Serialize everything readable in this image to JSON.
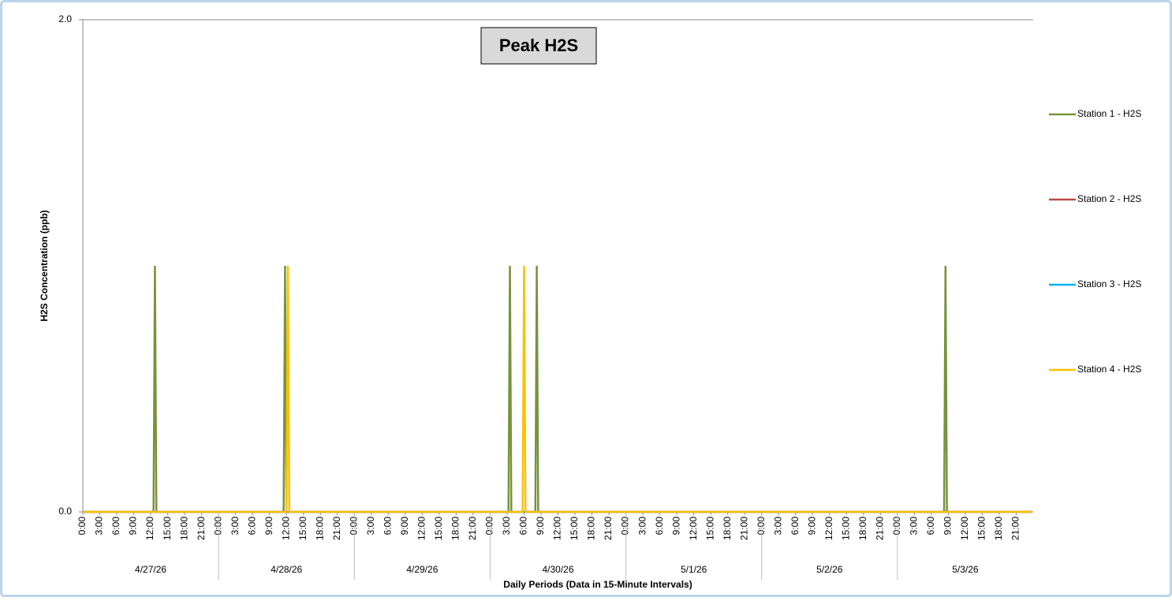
{
  "chart_data": {
    "type": "line",
    "title": "Peak H2S",
    "x_label": "Daily Periods (Data in 15-Minute Intervals)",
    "y_label": "H2S Concentration (ppb)",
    "xlim": [
      0,
      168
    ],
    "ylim": [
      0,
      2
    ],
    "yticks": [
      {
        "value": 0,
        "label": "0.0"
      },
      {
        "value": 2,
        "label": "2.0"
      }
    ],
    "xticks": [
      {
        "value": 0,
        "label": "0:00"
      },
      {
        "value": 3,
        "label": "3:00"
      },
      {
        "value": 6,
        "label": "6:00"
      },
      {
        "value": 9,
        "label": "9:00"
      },
      {
        "value": 12,
        "label": "12:00"
      },
      {
        "value": 15,
        "label": "15:00"
      },
      {
        "value": 18,
        "label": "18:00"
      },
      {
        "value": 21,
        "label": "21:00"
      },
      {
        "value": 24,
        "label": "0:00"
      },
      {
        "value": 27,
        "label": "3:00"
      },
      {
        "value": 30,
        "label": "6:00"
      },
      {
        "value": 33,
        "label": "9:00"
      },
      {
        "value": 36,
        "label": "12:00"
      },
      {
        "value": 39,
        "label": "15:00"
      },
      {
        "value": 42,
        "label": "18:00"
      },
      {
        "value": 45,
        "label": "21:00"
      },
      {
        "value": 48,
        "label": "0:00"
      },
      {
        "value": 51,
        "label": "3:00"
      },
      {
        "value": 54,
        "label": "6:00"
      },
      {
        "value": 57,
        "label": "9:00"
      },
      {
        "value": 60,
        "label": "12:00"
      },
      {
        "value": 63,
        "label": "15:00"
      },
      {
        "value": 66,
        "label": "18:00"
      },
      {
        "value": 69,
        "label": "21:00"
      },
      {
        "value": 72,
        "label": "0:00"
      },
      {
        "value": 75,
        "label": "3:00"
      },
      {
        "value": 78,
        "label": "6:00"
      },
      {
        "value": 81,
        "label": "9:00"
      },
      {
        "value": 84,
        "label": "12:00"
      },
      {
        "value": 87,
        "label": "15:00"
      },
      {
        "value": 90,
        "label": "18:00"
      },
      {
        "value": 93,
        "label": "21:00"
      },
      {
        "value": 96,
        "label": "0:00"
      },
      {
        "value": 99,
        "label": "3:00"
      },
      {
        "value": 102,
        "label": "6:00"
      },
      {
        "value": 105,
        "label": "9:00"
      },
      {
        "value": 108,
        "label": "12:00"
      },
      {
        "value": 111,
        "label": "15:00"
      },
      {
        "value": 114,
        "label": "18:00"
      },
      {
        "value": 117,
        "label": "21:00"
      },
      {
        "value": 120,
        "label": "0:00"
      },
      {
        "value": 123,
        "label": "3:00"
      },
      {
        "value": 126,
        "label": "6:00"
      },
      {
        "value": 129,
        "label": "9:00"
      },
      {
        "value": 132,
        "label": "12:00"
      },
      {
        "value": 135,
        "label": "15:00"
      },
      {
        "value": 138,
        "label": "18:00"
      },
      {
        "value": 141,
        "label": "21:00"
      },
      {
        "value": 144,
        "label": "0:00"
      },
      {
        "value": 147,
        "label": "3:00"
      },
      {
        "value": 150,
        "label": "6:00"
      },
      {
        "value": 153,
        "label": "9:00"
      },
      {
        "value": 156,
        "label": "12:00"
      },
      {
        "value": 159,
        "label": "15:00"
      },
      {
        "value": 162,
        "label": "18:00"
      },
      {
        "value": 165,
        "label": "21:00"
      }
    ],
    "x_group_labels": [
      "4/27/26",
      "4/28/26",
      "4/29/26",
      "4/30/26",
      "5/1/26",
      "5/2/26",
      "5/3/26"
    ],
    "grid": true,
    "legend": "right",
    "series": [
      {
        "name": "Station 1 - H2S",
        "color": "#77933c",
        "x": [
          0,
          12.5,
          12.75,
          13,
          35.5,
          35.75,
          36,
          75.25,
          75.5,
          75.75,
          80,
          80.25,
          80.5,
          152.25,
          152.5,
          152.75,
          167.75
        ],
        "values": [
          0,
          0,
          1,
          0,
          0,
          1,
          0,
          0,
          1,
          0,
          0,
          1,
          0,
          0,
          1,
          0,
          0
        ]
      },
      {
        "name": "Station 2 - H2S",
        "color": "#be4b48",
        "x": [
          0,
          167.75
        ],
        "values": [
          0,
          0
        ]
      },
      {
        "name": "Station 3 - H2S",
        "color": "#00b0f0",
        "x": [
          0,
          167.75
        ],
        "values": [
          0,
          0
        ]
      },
      {
        "name": "Station 4 - H2S",
        "color": "#ffc000",
        "x": [
          0,
          36,
          36.25,
          36.5,
          77.75,
          78,
          78.25,
          167.75
        ],
        "values": [
          0,
          0,
          1,
          0,
          0,
          1,
          0,
          0
        ]
      }
    ]
  }
}
